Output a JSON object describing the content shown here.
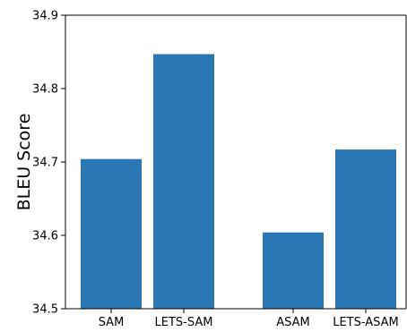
{
  "chart_data": {
    "type": "bar",
    "categories": [
      "SAM",
      "LETS-SAM",
      "ASAM",
      "LETS-ASAM"
    ],
    "values": [
      34.704,
      34.847,
      34.604,
      34.717
    ],
    "title": "",
    "xlabel": "",
    "ylabel": "BLEU Score",
    "ylim": [
      34.5,
      34.9
    ],
    "yticks": [
      "34.5",
      "34.6",
      "34.7",
      "34.8",
      "34.9"
    ],
    "bar_color": "#2a77b4",
    "grid": false,
    "legend": "none"
  }
}
